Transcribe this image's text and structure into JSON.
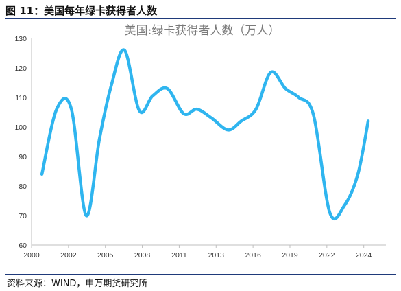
{
  "figure": {
    "title": "图 11：美国每年绿卡获得者人数",
    "source": "资料来源：WIND，申万期货研究所"
  },
  "colors": {
    "series": "#2fb5ef",
    "rule": "#1f3a7a",
    "axis": "#bfbfbf"
  },
  "chart_data": {
    "type": "line",
    "title": "美国:绿卡获得者人数（万人）",
    "xlabel": "",
    "ylabel": "",
    "xlim": [
      2000,
      2024
    ],
    "ylim": [
      60,
      130
    ],
    "x_ticks": [
      "2000",
      "2002",
      "2005",
      "2008",
      "2011",
      "2013",
      "2016",
      "2019",
      "2022",
      "2024"
    ],
    "x_tick_values": [
      2000,
      2002.5,
      2005,
      2007.5,
      2010,
      2012.5,
      2015,
      2017.5,
      2020,
      2022.5
    ],
    "y_ticks": [
      "60",
      "70",
      "80",
      "90",
      "100",
      "110",
      "120",
      "130"
    ],
    "y_tick_values": [
      60,
      70,
      80,
      90,
      100,
      110,
      120,
      130
    ],
    "grid": false,
    "legend": "none",
    "series": [
      {
        "x": [
          2000.7,
          2001.7,
          2002.7,
          2003.7,
          2004.6,
          2005.4,
          2006.3,
          2007.3,
          2008.2,
          2009.2,
          2010.3,
          2011.2,
          2012.2,
          2013.3,
          2014.2,
          2015.2,
          2016.2,
          2017.2,
          2018.1,
          2019.1,
          2020.2,
          2021.2,
          2022.1,
          2022.8
        ],
        "values": [
          84,
          106,
          106,
          70,
          96,
          114,
          126,
          105.5,
          110.5,
          113,
          104.5,
          106,
          103,
          99,
          102,
          106,
          118.5,
          113,
          110,
          104,
          71,
          73.5,
          84,
          102
        ]
      }
    ]
  }
}
